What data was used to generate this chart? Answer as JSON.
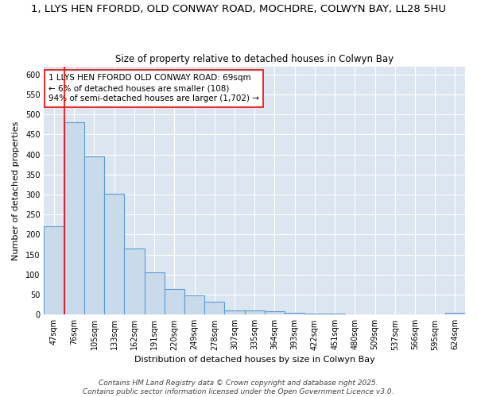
{
  "title_line1": "1, LLYS HEN FFORDD, OLD CONWAY ROAD, MOCHDRE, COLWYN BAY, LL28 5HU",
  "title_line2": "Size of property relative to detached houses in Colwyn Bay",
  "xlabel": "Distribution of detached houses by size in Colwyn Bay",
  "ylabel": "Number of detached properties",
  "categories": [
    "47sqm",
    "76sqm",
    "105sqm",
    "133sqm",
    "162sqm",
    "191sqm",
    "220sqm",
    "249sqm",
    "278sqm",
    "307sqm",
    "335sqm",
    "364sqm",
    "393sqm",
    "422sqm",
    "451sqm",
    "480sqm",
    "509sqm",
    "537sqm",
    "566sqm",
    "595sqm",
    "624sqm"
  ],
  "values": [
    220,
    480,
    395,
    302,
    165,
    105,
    65,
    48,
    32,
    10,
    10,
    9,
    5,
    3,
    3,
    1,
    1,
    1,
    1,
    1,
    5
  ],
  "bar_color": "#c9daea",
  "bar_edge_color": "#5b9bd5",
  "bar_edge_width": 0.8,
  "red_line_index": 1,
  "annotation_text": "1 LLYS HEN FFORDD OLD CONWAY ROAD: 69sqm\n← 6% of detached houses are smaller (108)\n94% of semi-detached houses are larger (1,702) →",
  "annotation_fontsize": 7.5,
  "ylim": [
    0,
    620
  ],
  "yticks": [
    0,
    50,
    100,
    150,
    200,
    250,
    300,
    350,
    400,
    450,
    500,
    550,
    600
  ],
  "footer_line1": "Contains HM Land Registry data © Crown copyright and database right 2025.",
  "footer_line2": "Contains public sector information licensed under the Open Government Licence v3.0.",
  "fig_bg_color": "#ffffff",
  "plot_bg_color": "#dce6f1",
  "grid_color": "#ffffff",
  "title_fontsize": 9.5,
  "subtitle_fontsize": 8.5,
  "axis_label_fontsize": 8,
  "tick_fontsize": 7,
  "footer_fontsize": 6.5
}
